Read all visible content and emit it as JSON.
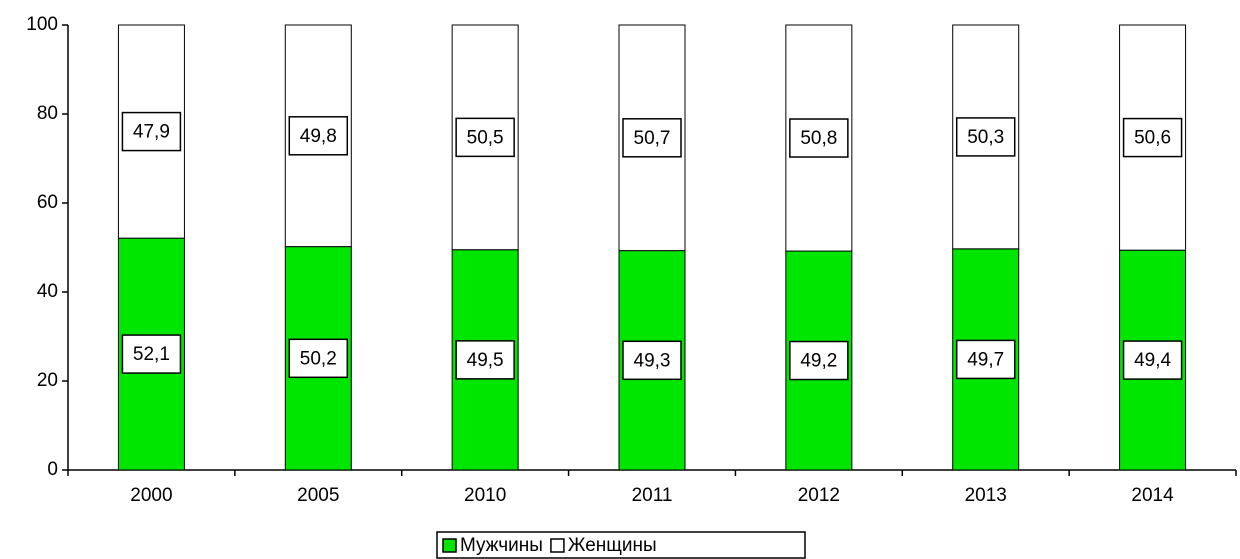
{
  "chart_data": {
    "type": "stacked_bar",
    "categories": [
      "2000",
      "2005",
      "2010",
      "2011",
      "2012",
      "2013",
      "2014"
    ],
    "series": [
      {
        "name": "Мужчины",
        "color": "#00e600",
        "values": [
          52.1,
          50.2,
          49.5,
          49.3,
          49.2,
          49.7,
          49.4
        ],
        "value_labels": [
          "52,1",
          "50,2",
          "49,5",
          "49,3",
          "49,2",
          "49,7",
          "49,4"
        ]
      },
      {
        "name": "Женщины",
        "color": "#ffffff",
        "values": [
          47.9,
          49.8,
          50.5,
          50.7,
          50.8,
          50.3,
          50.6
        ],
        "value_labels": [
          "47,9",
          "49,8",
          "50,5",
          "50,7",
          "50,8",
          "50,3",
          "50,6"
        ]
      }
    ],
    "ylim": [
      0,
      100
    ],
    "yticks": [
      0,
      20,
      40,
      60,
      80,
      100
    ],
    "legend": "bottom"
  }
}
